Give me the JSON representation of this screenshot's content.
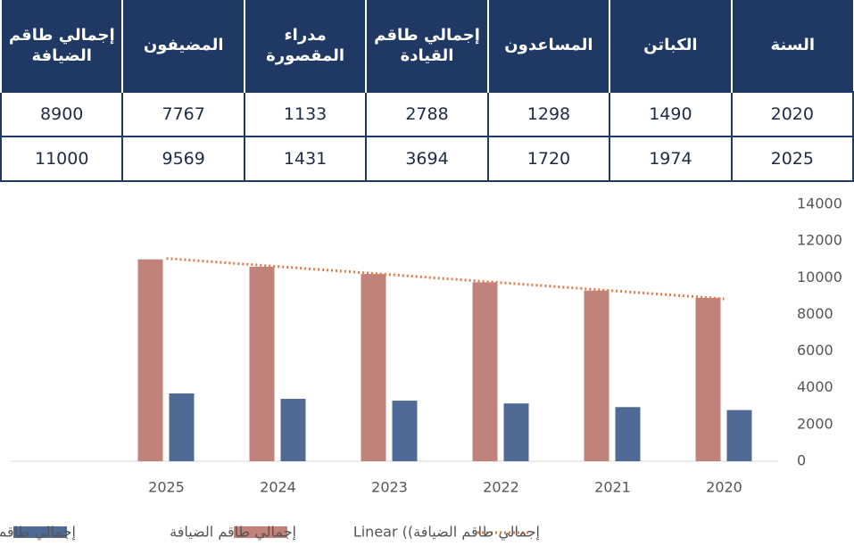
{
  "table": {
    "columns": [
      "السنة",
      "الكباتن",
      "المساعدون",
      "إجمالي طاقم القيادة",
      "مدراء المقصورة",
      "المضيفون",
      "إجمالي طاقم الضيافة"
    ],
    "rows": [
      [
        "2020",
        "1490",
        "1298",
        "2788",
        "1133",
        "7767",
        "8900"
      ],
      [
        "2025",
        "1974",
        "1720",
        "3694",
        "1431",
        "9569",
        "11000"
      ]
    ]
  },
  "chart_data": {
    "type": "bar",
    "categories": [
      "2025",
      "2024",
      "2023",
      "2022",
      "2021",
      "2020"
    ],
    "series": [
      {
        "name": "إجمالي طاقم الضيافة",
        "color": "#c0827a",
        "values": [
          11000,
          10600,
          10200,
          9750,
          9300,
          8900
        ]
      },
      {
        "name": "إجمالي طاقم القيادة",
        "color": "#4f6a94",
        "values": [
          3694,
          3400,
          3300,
          3150,
          2950,
          2788
        ]
      }
    ],
    "trendline": {
      "name": "إجمالي طاقم الضيافة)) Linear",
      "color": "#e07b4a",
      "values": [
        11050,
        10610,
        10170,
        9730,
        9290,
        8850
      ]
    },
    "ylim": [
      0,
      14000
    ],
    "yticks": [
      0,
      2000,
      4000,
      6000,
      8000,
      10000,
      12000,
      14000
    ]
  }
}
